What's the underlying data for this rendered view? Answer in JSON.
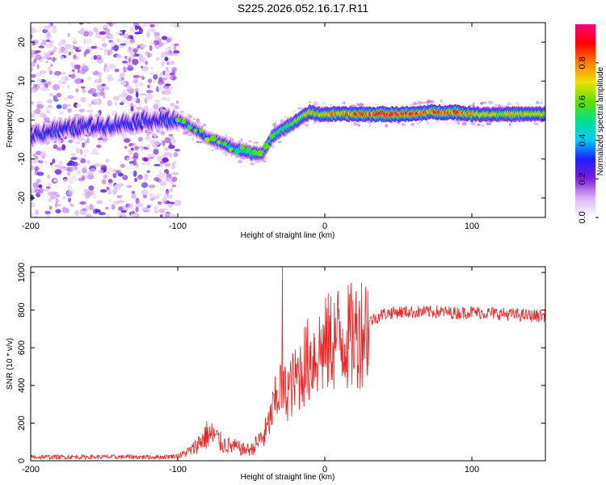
{
  "title": "S225.2026.052.16.17.R11",
  "chart_data": [
    {
      "type": "heatmap",
      "xlabel": "Height of straight line (km)",
      "ylabel": "Frequency (Hz)",
      "xlim": [
        -200,
        150
      ],
      "ylim": [
        -25,
        25
      ],
      "x_ticks": [
        -200,
        -100,
        0,
        100
      ],
      "y_ticks": [
        -20,
        -10,
        0,
        10,
        20
      ],
      "colorbar": {
        "label": "Normalized spectral amplitude",
        "range": [
          0,
          1
        ],
        "ticks": [
          "0.0",
          "0.2",
          "0.4",
          "0.6",
          "0.8"
        ],
        "colors": [
          "#ffffff",
          "#d9b3f5",
          "#7b1fd6",
          "#1d1dff",
          "#00c8ff",
          "#00e08a",
          "#5ee000",
          "#f0e000",
          "#ff8000",
          "#ff0000",
          "#ff0080"
        ]
      },
      "ridge": {
        "x": [
          -200,
          -190,
          -180,
          -170,
          -160,
          -150,
          -140,
          -130,
          -120,
          -110,
          -100,
          -90,
          -80,
          -70,
          -60,
          -50,
          -42,
          -35,
          -30,
          -25,
          -20,
          -15,
          -10,
          -5,
          0,
          10,
          20,
          30,
          40,
          50,
          60,
          70,
          80,
          90,
          100,
          110,
          120,
          130,
          140,
          150
        ],
        "freq": [
          -4,
          -3,
          -2.5,
          -2,
          -1.5,
          -1.5,
          -1,
          -0.5,
          0,
          0,
          0,
          -2,
          -4.5,
          -6,
          -7.5,
          -8.5,
          -8.5,
          -4,
          -2.5,
          -1.5,
          -0.5,
          1,
          2,
          1.5,
          1.5,
          1.5,
          1.5,
          1.5,
          1.5,
          1.5,
          1.5,
          2,
          2,
          2,
          1.5,
          1.5,
          1.5,
          1.5,
          1.5,
          1.5
        ],
        "amplitude": [
          0.3,
          0.3,
          0.3,
          0.3,
          0.3,
          0.3,
          0.3,
          0.3,
          0.3,
          0.3,
          0.35,
          0.35,
          0.35,
          0.4,
          0.45,
          0.5,
          0.45,
          0.5,
          0.5,
          0.55,
          0.6,
          0.65,
          0.7,
          0.7,
          0.75,
          0.8,
          0.8,
          0.85,
          0.9,
          0.9,
          0.85,
          0.8,
          0.85,
          0.85,
          0.75,
          0.7,
          0.7,
          0.7,
          0.7,
          0.7
        ]
      },
      "noise_region": {
        "x_range": [
          -200,
          -100
        ],
        "freq_range": [
          -25,
          25
        ]
      }
    },
    {
      "type": "line",
      "xlabel": "Height of straight line (km)",
      "ylabel": "SNR (10 * v/v)",
      "xlim": [
        -200,
        150
      ],
      "ylim": [
        0,
        1030
      ],
      "x_ticks": [
        -200,
        -100,
        0,
        100
      ],
      "y_ticks": [
        0,
        200,
        400,
        600,
        800,
        1000
      ],
      "color": "#ee2222",
      "series": [
        {
          "name": "SNR",
          "x": [
            -200,
            -180,
            -160,
            -140,
            -120,
            -110,
            -100,
            -95,
            -90,
            -85,
            -80,
            -75,
            -70,
            -65,
            -60,
            -55,
            -50,
            -45,
            -40,
            -35,
            -32,
            -30,
            -28,
            -25,
            -20,
            -15,
            -10,
            -5,
            0,
            5,
            10,
            15,
            20,
            25,
            30,
            40,
            50,
            60,
            70,
            80,
            90,
            100,
            110,
            120,
            130,
            140,
            150
          ],
          "values": [
            20,
            20,
            20,
            20,
            20,
            20,
            25,
            40,
            60,
            100,
            140,
            130,
            90,
            80,
            70,
            60,
            60,
            100,
            150,
            280,
            350,
            400,
            350,
            380,
            420,
            500,
            540,
            580,
            600,
            640,
            660,
            650,
            660,
            700,
            740,
            780,
            790,
            790,
            790,
            790,
            785,
            790,
            785,
            780,
            775,
            770,
            770
          ]
        }
      ],
      "spike": {
        "x": -29,
        "value": 1030
      }
    }
  ]
}
